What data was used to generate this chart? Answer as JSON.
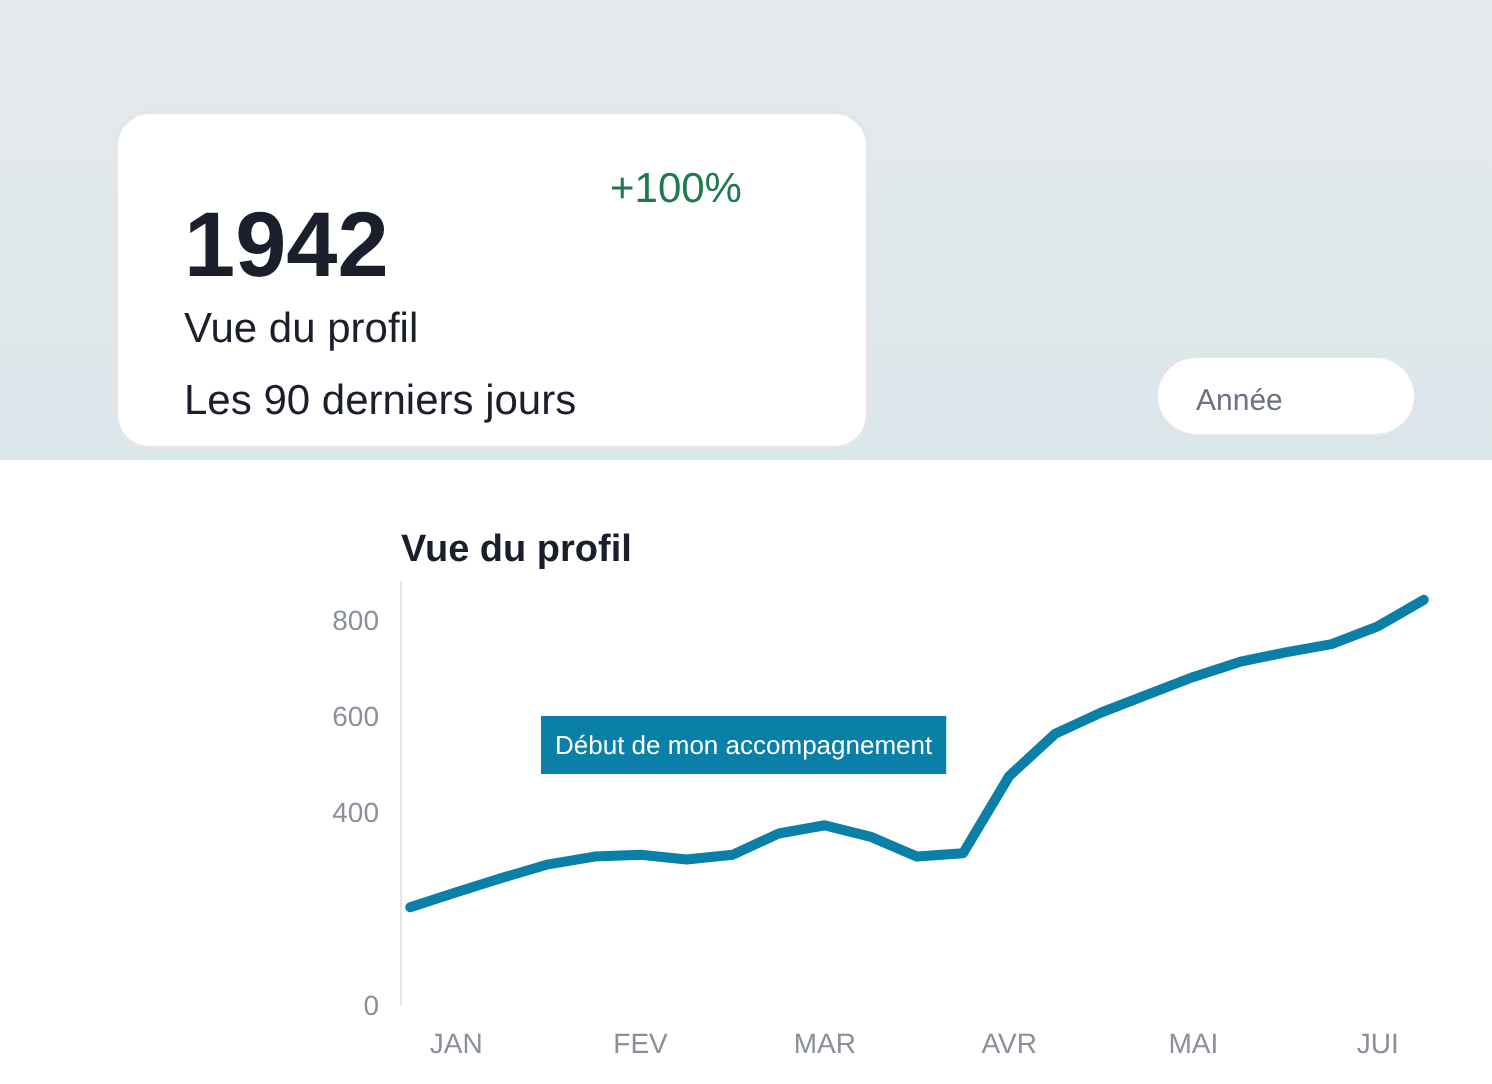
{
  "chart_data": {
    "type": "line",
    "title": "Vue du profil",
    "categories": [
      null,
      "JAN",
      null,
      null,
      null,
      "FEV",
      null,
      null,
      null,
      "MAR",
      null,
      null,
      null,
      "AVR",
      null,
      null,
      null,
      "MAI",
      null,
      null,
      null,
      "JUI",
      null
    ],
    "series": [
      {
        "color": "#0a7fa8",
        "values": [
          203,
          234,
          264,
          292,
          308,
          312,
          302,
          312,
          356,
          373,
          349,
          308,
          315,
          475,
          563,
          607,
          644,
          681,
          712,
          732,
          749,
          786,
          841
        ]
      }
    ],
    "ylim": [
      0,
      880
    ],
    "yticks": [
      0,
      400,
      600,
      800
    ],
    "annotations": [
      "Début de mon accompagnement",
      "1942",
      "+100%",
      "Vue du profil",
      "Les 90 derniers jours",
      "Année"
    ],
    "grid": false,
    "marker": "none",
    "line_style": "solid"
  }
}
